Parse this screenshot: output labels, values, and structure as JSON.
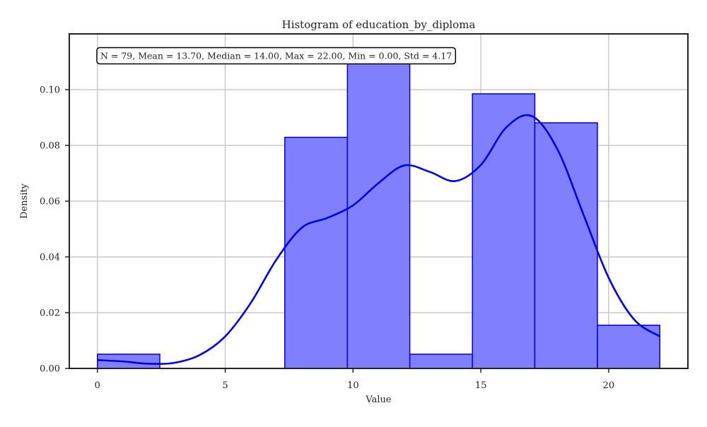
{
  "chart_data": {
    "type": "histogram",
    "title": "Histogram of education_by_diploma",
    "xlabel": "Value",
    "ylabel": "Density",
    "xlim": [
      -1.1,
      23.1
    ],
    "ylim": [
      0,
      0.12
    ],
    "grid": true,
    "xticks": [
      0,
      5,
      10,
      15,
      20
    ],
    "xtick_labels": [
      "0",
      "5",
      "10",
      "15",
      "20"
    ],
    "yticks": [
      0.0,
      0.02,
      0.04,
      0.06,
      0.08,
      0.1
    ],
    "ytick_labels": [
      "0.00",
      "0.02",
      "0.04",
      "0.06",
      "0.08",
      "0.10"
    ],
    "stats_box": "N = 79, Mean = 13.70, Median = 14.00, Max = 22.00, Min = 0.00, Std = 4.17",
    "bins": [
      {
        "start": 0.0,
        "end": 2.44,
        "density": 0.0051
      },
      {
        "start": 2.44,
        "end": 4.89,
        "density": 0.0
      },
      {
        "start": 4.89,
        "end": 7.33,
        "density": 0.0
      },
      {
        "start": 7.33,
        "end": 9.78,
        "density": 0.0829
      },
      {
        "start": 9.78,
        "end": 12.22,
        "density": 0.112
      },
      {
        "start": 12.22,
        "end": 14.67,
        "density": 0.0051
      },
      {
        "start": 14.67,
        "end": 17.11,
        "density": 0.0985
      },
      {
        "start": 17.11,
        "end": 19.56,
        "density": 0.0881
      },
      {
        "start": 19.56,
        "end": 22.0,
        "density": 0.0155
      }
    ],
    "kde": {
      "x": [
        0,
        1,
        2,
        3,
        4,
        5,
        6,
        7,
        8,
        9,
        10,
        11,
        12,
        13,
        14,
        15,
        16,
        17,
        18,
        19,
        20,
        21,
        22
      ],
      "y": [
        0.003,
        0.0025,
        0.0017,
        0.002,
        0.0048,
        0.0115,
        0.0235,
        0.039,
        0.0505,
        0.054,
        0.0585,
        0.0665,
        0.0728,
        0.0705,
        0.0672,
        0.073,
        0.0865,
        0.0905,
        0.0785,
        0.0555,
        0.0325,
        0.0175,
        0.0115
      ]
    },
    "colors": {
      "bar_fill": "#8080ff",
      "bar_edge": "#0000e0",
      "kde_line": "#0000e6",
      "grid": "#c8c8c8",
      "axes": "#222222"
    }
  }
}
